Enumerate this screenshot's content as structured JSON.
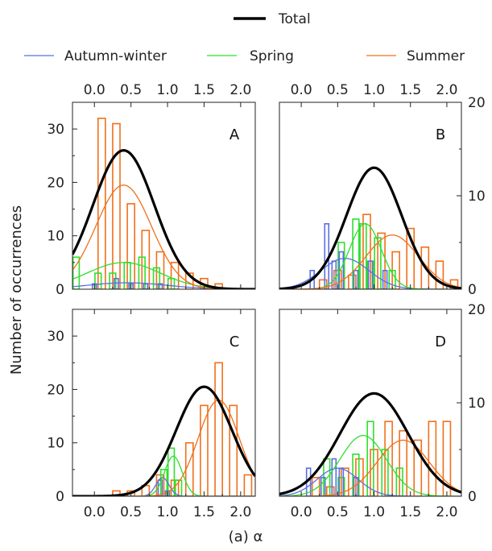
{
  "chart_data": {
    "type": "histogram-with-curves",
    "xlabel": "(a) α",
    "ylabel": "Number of occurrences",
    "xlim": [
      -0.3,
      2.2
    ],
    "x_ticks": [
      "0.0",
      "0.5",
      "1.0",
      "1.5",
      "2.0"
    ],
    "x_tick_values": [
      0.0,
      0.5,
      1.0,
      1.5,
      2.0
    ],
    "left_ylim": [
      0,
      35
    ],
    "left_y_ticks": [
      0,
      10,
      20,
      30
    ],
    "right_y_ticks": [
      0,
      10,
      20
    ],
    "legend": [
      {
        "name": "Total",
        "color": "#000000",
        "style": "thick"
      },
      {
        "name": "Autumn-winter",
        "color": "#5b6fe0",
        "style": "thin"
      },
      {
        "name": "Spring",
        "color": "#2ee02e",
        "style": "thin"
      },
      {
        "name": "Summer",
        "color": "#f0701c",
        "style": "thin"
      }
    ],
    "colors": {
      "total": "#000000",
      "autumn": "#5b6fe0",
      "spring": "#2ee02e",
      "summer": "#f0701c"
    },
    "bin_width": 0.1,
    "panels": [
      {
        "label": "A",
        "ylim": [
          0,
          35
        ],
        "left_axis": true,
        "right_axis": false,
        "curves": {
          "total": {
            "peak_x": 0.4,
            "amp": 26,
            "sigma": 0.42
          },
          "summer": {
            "peak_x": 0.4,
            "amp": 19.5,
            "sigma": 0.38
          },
          "spring": {
            "peak_x": 0.4,
            "amp": 5,
            "sigma": 0.5
          },
          "autumn": {
            "peak_x": 0.45,
            "amp": 1.2,
            "sigma": 0.55
          }
        },
        "bars": {
          "summer": {
            "x": [
              0.1,
              0.3,
              0.5,
              0.7,
              0.9,
              1.1,
              1.3,
              1.5,
              1.7
            ],
            "values": [
              32,
              31,
              16,
              11,
              7,
              5,
              3,
              2,
              1
            ]
          },
          "spring": {
            "x": [
              -0.25,
              0.05,
              0.25,
              0.45,
              0.65,
              0.85,
              1.05
            ],
            "values": [
              6,
              3,
              3,
              5,
              6,
              4,
              2
            ]
          },
          "autumn": {
            "x": [
              0.0,
              0.3,
              0.5,
              0.7,
              0.9
            ],
            "values": [
              1,
              2,
              1,
              1,
              1
            ]
          }
        }
      },
      {
        "label": "B",
        "ylim": [
          0,
          20
        ],
        "left_axis": false,
        "right_axis": true,
        "curves": {
          "total": {
            "peak_x": 1.0,
            "amp": 13,
            "sigma": 0.38
          },
          "summer": {
            "peak_x": 1.25,
            "amp": 5.8,
            "sigma": 0.36
          },
          "spring": {
            "peak_x": 0.88,
            "amp": 7,
            "sigma": 0.22
          },
          "autumn": {
            "peak_x": 0.6,
            "amp": 3.3,
            "sigma": 0.33
          }
        },
        "bars": {
          "summer": {
            "x": [
              0.3,
              0.5,
              0.7,
              0.9,
              1.1,
              1.3,
              1.5,
              1.7,
              1.9,
              2.1
            ],
            "values": [
              1,
              2,
              1.5,
              8,
              6,
              4,
              6.5,
              4.5,
              3,
              1
            ]
          },
          "spring": {
            "x": [
              0.55,
              0.75,
              0.85,
              0.95,
              1.05,
              1.25
            ],
            "values": [
              5,
              7.5,
              7,
              3,
              5.5,
              2
            ]
          },
          "autumn": {
            "x": [
              0.15,
              0.35,
              0.45,
              0.55,
              0.75,
              0.95,
              1.15
            ],
            "values": [
              2,
              7,
              3,
              4,
              2,
              3,
              2
            ]
          }
        }
      },
      {
        "label": "C",
        "ylim": [
          0,
          35
        ],
        "left_axis": true,
        "right_axis": false,
        "curves": {
          "total": {
            "peak_x": 1.5,
            "amp": 20.5,
            "sigma": 0.38
          },
          "summer": {
            "peak_x": 1.7,
            "amp": 18,
            "sigma": 0.28
          },
          "spring": {
            "peak_x": 1.08,
            "amp": 7.5,
            "sigma": 0.12
          },
          "autumn": {
            "peak_x": 0.93,
            "amp": 3.5,
            "sigma": 0.09
          }
        },
        "bars": {
          "summer": {
            "x": [
              0.3,
              0.5,
              0.7,
              0.9,
              1.1,
              1.3,
              1.5,
              1.7,
              1.9,
              2.1
            ],
            "values": [
              1,
              1,
              2,
              4,
              3,
              10,
              17,
              25,
              17,
              4
            ]
          },
          "spring": {
            "x": [
              0.95,
              1.05,
              1.15
            ],
            "values": [
              5,
              9,
              3
            ]
          },
          "autumn": {
            "x": [
              0.9,
              1.0
            ],
            "values": [
              3,
              1
            ]
          }
        }
      },
      {
        "label": "D",
        "ylim": [
          0,
          20
        ],
        "left_axis": false,
        "right_axis": true,
        "curves": {
          "total": {
            "peak_x": 1.0,
            "amp": 11,
            "sigma": 0.47
          },
          "summer": {
            "peak_x": 1.4,
            "amp": 6,
            "sigma": 0.36
          },
          "spring": {
            "peak_x": 0.85,
            "amp": 6.5,
            "sigma": 0.32
          },
          "autumn": {
            "peak_x": 0.5,
            "amp": 3,
            "sigma": 0.28
          }
        },
        "bars": {
          "summer": {
            "x": [
              0.2,
              0.4,
              0.6,
              0.8,
              1.0,
              1.2,
              1.4,
              1.6,
              1.8,
              2.0
            ],
            "values": [
              2,
              1,
              3,
              4,
              5,
              8,
              7,
              6,
              8,
              8
            ]
          },
          "spring": {
            "x": [
              0.35,
              0.55,
              0.75,
              0.95,
              1.15,
              1.35
            ],
            "values": [
              4,
              2,
              4.5,
              8,
              5,
              3
            ]
          },
          "autumn": {
            "x": [
              0.1,
              0.3,
              0.45,
              0.55,
              0.75
            ],
            "values": [
              3,
              2,
              4,
              3,
              2
            ]
          }
        }
      }
    ]
  }
}
